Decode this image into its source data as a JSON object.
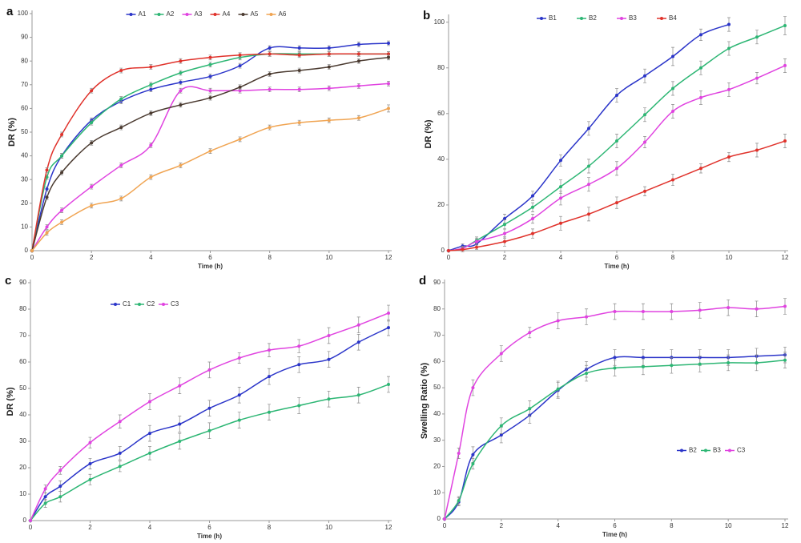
{
  "chart_data": [
    {
      "type": "line",
      "label": "a",
      "xlabel": "Time (h)",
      "ylabel": "DR (%)",
      "legend": "top",
      "x": [
        0,
        0.5,
        1,
        2,
        3,
        4,
        5,
        6,
        7,
        8,
        9,
        10,
        11,
        12
      ],
      "xlim": [
        0,
        12
      ],
      "xticks": [
        0,
        2,
        4,
        6,
        8,
        10,
        12
      ],
      "ylim": [
        0,
        100
      ],
      "yticks": [
        0,
        10,
        20,
        30,
        40,
        50,
        60,
        70,
        80,
        90,
        100
      ],
      "series": [
        {
          "name": "A1",
          "color": "#2b35c9",
          "values": [
            0,
            26,
            40,
            55,
            63,
            68,
            71,
            73.5,
            78,
            85.5,
            85.5,
            85.5,
            87,
            87.5
          ],
          "errors": [
            0,
            1,
            1,
            1,
            1,
            1,
            1,
            1,
            1,
            1,
            1,
            1,
            1,
            1
          ]
        },
        {
          "name": "A2",
          "color": "#2db674",
          "values": [
            0,
            31,
            40,
            54,
            64,
            70,
            75,
            78.5,
            81.5,
            83,
            83,
            83,
            83,
            83
          ],
          "errors": [
            0,
            1,
            1,
            1,
            1,
            1,
            1,
            1,
            1,
            1,
            1,
            1,
            1,
            1
          ]
        },
        {
          "name": "A3",
          "color": "#e043e0",
          "values": [
            0,
            10,
            17,
            27,
            36,
            44.5,
            67.5,
            67.5,
            67.5,
            68,
            68,
            68.5,
            69.5,
            70.5
          ],
          "errors": [
            0,
            1,
            1,
            1,
            1,
            1,
            1,
            1,
            1,
            1,
            1,
            1,
            1,
            1
          ]
        },
        {
          "name": "A4",
          "color": "#e0322b",
          "values": [
            0,
            34,
            49,
            67.5,
            76,
            77.5,
            80,
            81.5,
            82.5,
            83,
            82.5,
            83,
            83,
            83
          ],
          "errors": [
            0,
            1,
            1,
            1,
            1,
            1,
            1,
            1,
            1,
            1,
            1,
            1,
            1,
            1
          ]
        },
        {
          "name": "A5",
          "color": "#4b3b31",
          "values": [
            0,
            22.5,
            33,
            45.5,
            52,
            58,
            61.5,
            64.5,
            69,
            74.5,
            76,
            77.5,
            80,
            81.5
          ],
          "errors": [
            0,
            1,
            1,
            1,
            1,
            1,
            1,
            1,
            1,
            1,
            1,
            1,
            1,
            1
          ]
        },
        {
          "name": "A6",
          "color": "#f0a452",
          "values": [
            0,
            7.5,
            12,
            19,
            22,
            31,
            36,
            42,
            47,
            52,
            54,
            55,
            56,
            60
          ],
          "errors": [
            0,
            1,
            1,
            1,
            1,
            1,
            1,
            1,
            1,
            1,
            1,
            1,
            1,
            1.5
          ]
        }
      ]
    },
    {
      "type": "line",
      "label": "b",
      "xlabel": "Time (h)",
      "ylabel": "DR (%)",
      "legend": "top",
      "x": [
        0,
        0.5,
        1,
        2,
        3,
        4,
        5,
        6,
        7,
        8,
        9,
        10,
        11,
        12
      ],
      "xlim": [
        0,
        12
      ],
      "xticks": [
        0,
        2,
        4,
        6,
        8,
        10,
        12
      ],
      "ylim": [
        0,
        102
      ],
      "yticks": [
        0,
        20,
        40,
        60,
        80,
        100
      ],
      "series": [
        {
          "name": "B1",
          "color": "#2b35c9",
          "values": [
            0,
            2,
            3,
            14,
            24,
            39.5,
            53.5,
            68,
            76.5,
            85,
            94.5,
            99,
            null,
            null
          ],
          "errors": [
            0,
            1,
            1.5,
            2,
            2,
            2.5,
            3,
            3,
            3,
            4,
            2.5,
            3,
            null,
            null
          ]
        },
        {
          "name": "B2",
          "color": "#2db674",
          "values": [
            0,
            1,
            4.5,
            11.5,
            19,
            28,
            37,
            48,
            59.5,
            71,
            80,
            88.5,
            93.5,
            98.5
          ],
          "errors": [
            0,
            1,
            1.5,
            2,
            2,
            3,
            3,
            3,
            3,
            3,
            3,
            3,
            3,
            4
          ]
        },
        {
          "name": "B3",
          "color": "#e043e0",
          "values": [
            0,
            1,
            4,
            7.5,
            14,
            23,
            29,
            36,
            47.5,
            61,
            67,
            70.5,
            75.5,
            81
          ],
          "errors": [
            0,
            1,
            1.5,
            2,
            2,
            3,
            3,
            3,
            2.5,
            3,
            3,
            3,
            2.5,
            3
          ]
        },
        {
          "name": "B4",
          "color": "#e0322b",
          "values": [
            0,
            0.5,
            1.5,
            4,
            7.5,
            12,
            16,
            21,
            26,
            31,
            36,
            41,
            44,
            48
          ],
          "errors": [
            0,
            1,
            1,
            2,
            2,
            3,
            3,
            2.5,
            2,
            2.5,
            2,
            2,
            3,
            3
          ]
        }
      ]
    },
    {
      "type": "line",
      "label": "c",
      "xlabel": "Time (h)",
      "ylabel": "DR (%)",
      "legend": "top-left",
      "x": [
        0,
        0.5,
        1,
        2,
        3,
        4,
        5,
        6,
        7,
        8,
        9,
        10,
        11,
        12
      ],
      "xlim": [
        0,
        12
      ],
      "xticks": [
        0,
        2,
        4,
        6,
        8,
        10,
        12
      ],
      "ylim": [
        0,
        90
      ],
      "yticks": [
        0,
        10,
        20,
        30,
        40,
        50,
        60,
        70,
        80,
        90
      ],
      "series": [
        {
          "name": "C1",
          "color": "#2b35c9",
          "values": [
            0,
            9,
            13,
            21.5,
            25.5,
            33,
            36.5,
            42.5,
            47.5,
            54.5,
            59,
            61,
            67.5,
            73
          ],
          "errors": [
            0,
            1.5,
            2,
            2,
            2.5,
            3,
            3,
            3,
            3,
            3,
            3,
            3,
            3,
            3
          ]
        },
        {
          "name": "C2",
          "color": "#2db674",
          "values": [
            0,
            6.5,
            9,
            15.5,
            20.5,
            25.5,
            30,
            34,
            38,
            41,
            43.5,
            46,
            47.5,
            51.5
          ],
          "errors": [
            0,
            1.5,
            2,
            2,
            2,
            2.5,
            3,
            3,
            3,
            3,
            3,
            3,
            3,
            3
          ]
        },
        {
          "name": "C3",
          "color": "#e043e0",
          "values": [
            0,
            12,
            19,
            29.5,
            37.5,
            45,
            51,
            57,
            61.5,
            64.5,
            66,
            70,
            74,
            78.5
          ],
          "errors": [
            0,
            1.5,
            1.5,
            2,
            2.5,
            3,
            3,
            3,
            2,
            2.5,
            2.5,
            3,
            3,
            3
          ]
        }
      ]
    },
    {
      "type": "line",
      "label": "d",
      "xlabel": "Time (h)",
      "ylabel": "Swelling Ratio (%)",
      "legend": "right",
      "x": [
        0,
        0.5,
        1,
        2,
        3,
        4,
        5,
        6,
        7,
        8,
        9,
        10,
        11,
        12
      ],
      "xlim": [
        0,
        12
      ],
      "xticks": [
        0,
        2,
        4,
        6,
        8,
        10,
        12
      ],
      "ylim": [
        0,
        90
      ],
      "yticks": [
        0,
        10,
        20,
        30,
        40,
        50,
        60,
        70,
        80,
        90
      ],
      "series": [
        {
          "name": "B2",
          "color": "#2b35c9",
          "values": [
            0,
            6.5,
            24.5,
            32,
            39.5,
            49,
            57,
            61.5,
            61.5,
            61.5,
            61.5,
            61.5,
            62,
            62.5
          ],
          "errors": [
            0,
            1.5,
            3,
            3,
            3,
            3,
            3,
            3,
            3,
            3,
            3,
            3,
            3,
            3
          ]
        },
        {
          "name": "B3",
          "color": "#2db674",
          "values": [
            0,
            7,
            21,
            35.5,
            42,
            49.5,
            55.5,
            57.5,
            58,
            58.5,
            59,
            59.5,
            59.5,
            60.5
          ],
          "errors": [
            0,
            1.5,
            2,
            3,
            3,
            3,
            3,
            3,
            3,
            3,
            3,
            3,
            3,
            3
          ]
        },
        {
          "name": "C3",
          "color": "#e043e0",
          "values": [
            0,
            25,
            50,
            63,
            71,
            75.5,
            77,
            79,
            79,
            79,
            79.5,
            80.5,
            80,
            81
          ],
          "errors": [
            0,
            2,
            3,
            3,
            2,
            3,
            3,
            3,
            3,
            3,
            3,
            3,
            3,
            3
          ]
        }
      ]
    }
  ]
}
